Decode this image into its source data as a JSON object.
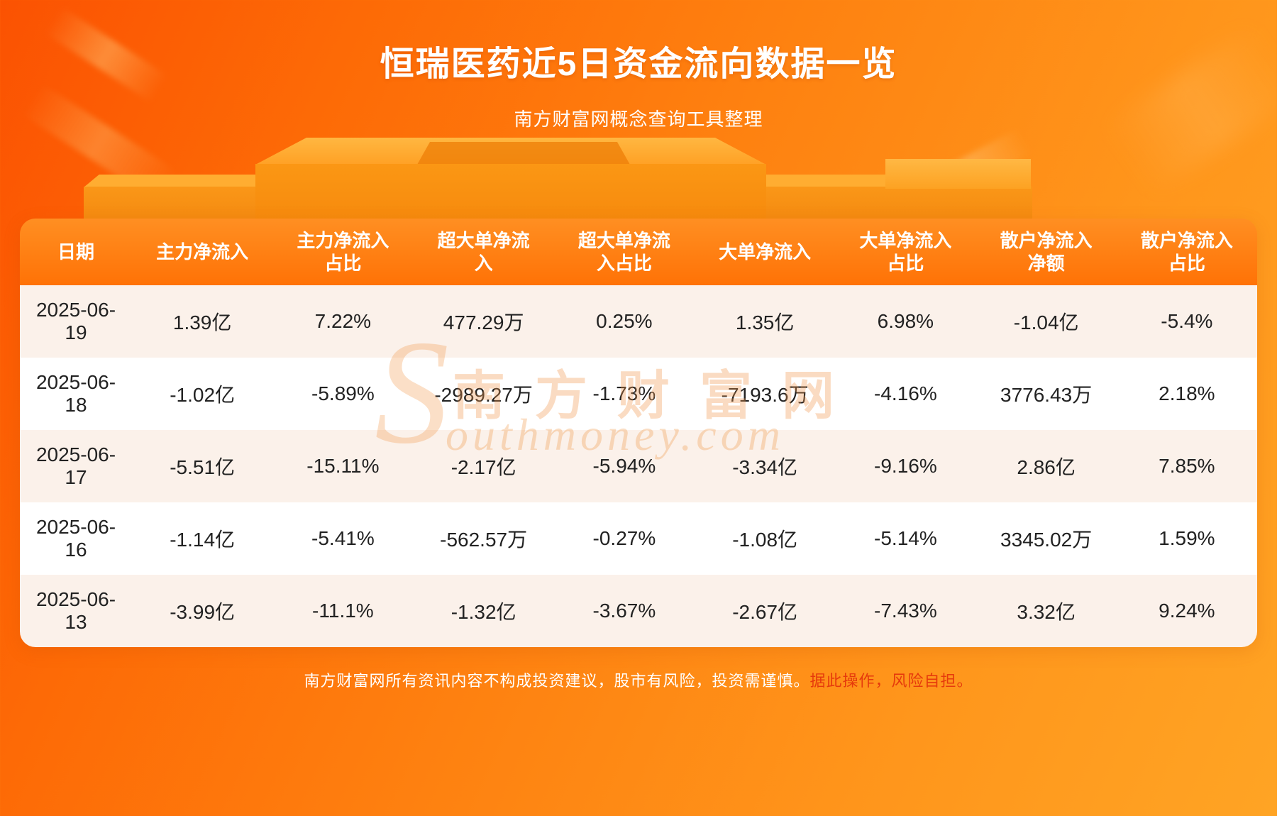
{
  "page": {
    "title": "恒瑞医药近5日资金流向数据一览",
    "subtitle": "南方财富网概念查询工具整理",
    "footer_normal": "南方财富网所有资讯内容不构成投资建议，股市有风险，投资需谨慎。",
    "footer_highlight": "据此操作，风险自担。",
    "watermark_s": "S",
    "watermark_cn": "南方财富网",
    "watermark_en": "outhmoney.com"
  },
  "chart_data": {
    "type": "table",
    "title": "恒瑞医药近5日资金流向数据一览",
    "columns": [
      "日期",
      "主力净流入",
      "主力净流入占比",
      "超大单净流入",
      "超大单净流入占比",
      "大单净流入",
      "大单净流入占比",
      "散户净流入净额",
      "散户净流入占比"
    ],
    "rows": [
      [
        "2025-06-19",
        "1.39亿",
        "7.22%",
        "477.29万",
        "0.25%",
        "1.35亿",
        "6.98%",
        "-1.04亿",
        "-5.4%"
      ],
      [
        "2025-06-18",
        "-1.02亿",
        "-5.89%",
        "-2989.27万",
        "-1.73%",
        "-7193.6万",
        "-4.16%",
        "3776.43万",
        "2.18%"
      ],
      [
        "2025-06-17",
        "-5.51亿",
        "-15.11%",
        "-2.17亿",
        "-5.94%",
        "-3.34亿",
        "-9.16%",
        "2.86亿",
        "7.85%"
      ],
      [
        "2025-06-16",
        "-1.14亿",
        "-5.41%",
        "-562.57万",
        "-0.27%",
        "-1.08亿",
        "-5.14%",
        "3345.02万",
        "1.59%"
      ],
      [
        "2025-06-13",
        "-3.99亿",
        "-11.1%",
        "-1.32亿",
        "-3.67%",
        "-2.67亿",
        "-7.43%",
        "3.32亿",
        "9.24%"
      ]
    ]
  },
  "colors": {
    "background_top": "#fb5202",
    "background_bottom": "#ffa424",
    "header_gradient_top": "#ff8f22",
    "header_gradient_bottom": "#ff7206",
    "row_light": "#fbf1ea",
    "row_white": "#ffffff",
    "text_dark": "#222222",
    "title_white": "#ffffff",
    "footer_risk_red": "#e63a0c"
  }
}
